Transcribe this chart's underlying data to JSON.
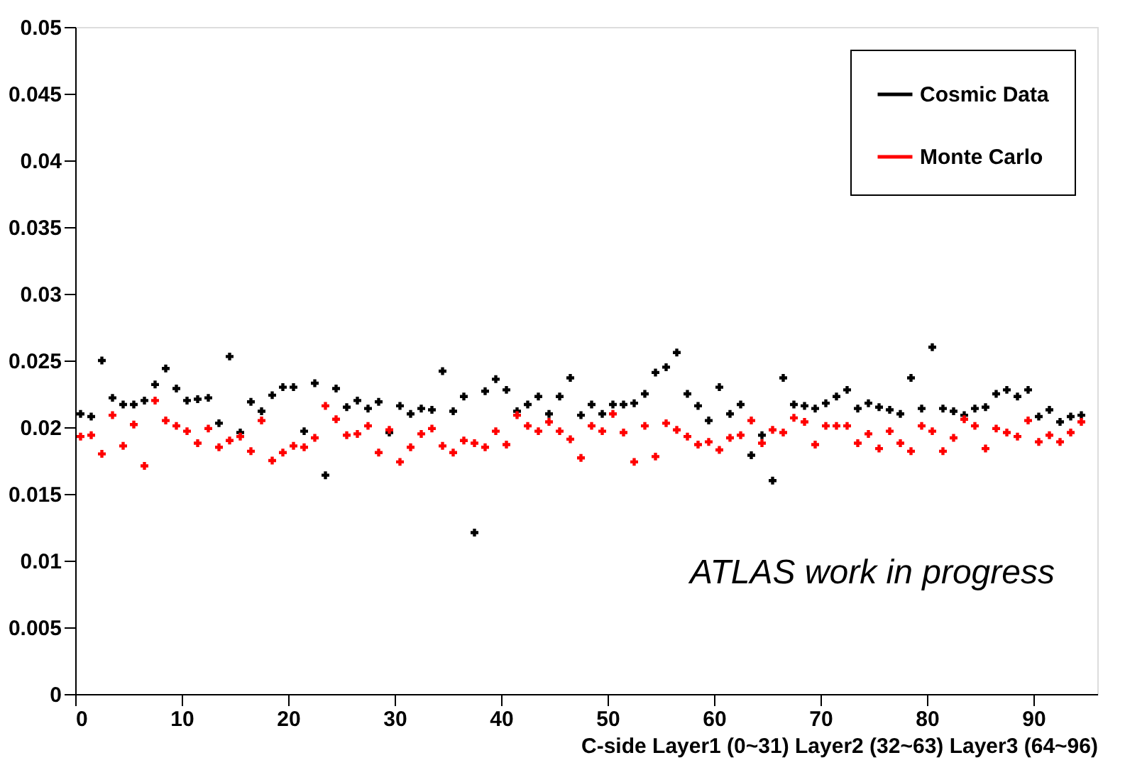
{
  "chart_data": {
    "type": "scatter",
    "xlabel": "C-side Layer1 (0~31) Layer2 (32~63) Layer3 (64~96)",
    "x": [
      0.5,
      1.5,
      2.5,
      3.5,
      4.5,
      5.5,
      6.5,
      7.5,
      8.5,
      9.5,
      10.5,
      11.5,
      12.5,
      13.5,
      14.5,
      15.5,
      16.5,
      17.5,
      18.5,
      19.5,
      20.5,
      21.5,
      22.5,
      23.5,
      24.5,
      25.5,
      26.5,
      27.5,
      28.5,
      29.5,
      30.5,
      31.5,
      32.5,
      33.5,
      34.5,
      35.5,
      36.5,
      37.5,
      38.5,
      39.5,
      40.5,
      41.5,
      42.5,
      43.5,
      44.5,
      45.5,
      46.5,
      47.5,
      48.5,
      49.5,
      50.5,
      51.5,
      52.5,
      53.5,
      54.5,
      55.5,
      56.5,
      57.5,
      58.5,
      59.5,
      60.5,
      61.5,
      62.5,
      63.5,
      64.5,
      65.5,
      66.5,
      67.5,
      68.5,
      69.5,
      70.5,
      71.5,
      72.5,
      73.5,
      74.5,
      75.5,
      76.5,
      77.5,
      78.5,
      79.5,
      80.5,
      81.5,
      82.5,
      83.5,
      84.5,
      85.5,
      86.5,
      87.5,
      88.5,
      89.5,
      90.5,
      91.5,
      92.5,
      93.5,
      94.5
    ],
    "series": [
      {
        "name": "Cosmic Data",
        "color": "#000000",
        "values": [
          0.021,
          0.0208,
          0.025,
          0.0222,
          0.0217,
          0.0217,
          0.022,
          0.0232,
          0.0244,
          0.0229,
          0.022,
          0.0221,
          0.0222,
          0.0203,
          0.0253,
          0.0196,
          0.0219,
          0.0212,
          0.0224,
          0.023,
          0.023,
          0.0197,
          0.0233,
          0.0164,
          0.0229,
          0.0215,
          0.022,
          0.0214,
          0.0219,
          0.0196,
          0.0216,
          0.021,
          0.0214,
          0.0213,
          0.0242,
          0.0212,
          0.0223,
          0.0121,
          0.0227,
          0.0236,
          0.0228,
          0.0212,
          0.0217,
          0.0223,
          0.021,
          0.0223,
          0.0237,
          0.0209,
          0.0217,
          0.021,
          0.0217,
          0.0217,
          0.0218,
          0.0225,
          0.0241,
          0.0245,
          0.0256,
          0.0225,
          0.0216,
          0.0205,
          0.023,
          0.021,
          0.0217,
          0.0179,
          0.0194,
          0.016,
          0.0237,
          0.0217,
          0.0216,
          0.0214,
          0.0218,
          0.0223,
          0.0228,
          0.0214,
          0.0218,
          0.0215,
          0.0213,
          0.021,
          0.0237,
          0.0214,
          0.026,
          0.0214,
          0.0212,
          0.0209,
          0.0214,
          0.0215,
          0.0225,
          0.0228,
          0.0223,
          0.0228,
          0.0208,
          0.0213,
          0.0204,
          0.0208,
          0.0209
        ]
      },
      {
        "name": "Monte Carlo",
        "color": "#ff0000",
        "values": [
          0.0193,
          0.0194,
          0.018,
          0.0209,
          0.0186,
          0.0202,
          0.0171,
          0.022,
          0.0205,
          0.0201,
          0.0197,
          0.0188,
          0.0199,
          0.0185,
          0.019,
          0.0193,
          0.0182,
          0.0205,
          0.0175,
          0.0181,
          0.0186,
          0.0185,
          0.0192,
          0.0216,
          0.0206,
          0.0194,
          0.0195,
          0.0201,
          0.0181,
          0.0198,
          0.0174,
          0.0185,
          0.0195,
          0.0199,
          0.0186,
          0.0181,
          0.019,
          0.0188,
          0.0185,
          0.0197,
          0.0187,
          0.0209,
          0.0201,
          0.0197,
          0.0204,
          0.0197,
          0.0191,
          0.0177,
          0.0201,
          0.0197,
          0.021,
          0.0196,
          0.0174,
          0.0201,
          0.0178,
          0.0203,
          0.0198,
          0.0193,
          0.0187,
          0.0189,
          0.0183,
          0.0192,
          0.0194,
          0.0205,
          0.0188,
          0.0198,
          0.0196,
          0.0207,
          0.0204,
          0.0187,
          0.0201,
          0.0201,
          0.0201,
          0.0188,
          0.0195,
          0.0184,
          0.0197,
          0.0188,
          0.0182,
          0.0201,
          0.0197,
          0.0182,
          0.0192,
          0.0206,
          0.0201,
          0.0184,
          0.0199,
          0.0196,
          0.0193,
          0.0205,
          0.0189,
          0.0194,
          0.0189,
          0.0196,
          0.0204
        ]
      }
    ],
    "xlim": [
      0,
      96
    ],
    "xticks": [
      0,
      10,
      20,
      30,
      40,
      50,
      60,
      70,
      80,
      90
    ],
    "ylim": [
      0,
      0.05
    ],
    "yticks": [
      0,
      0.005,
      0.01,
      0.015,
      0.02,
      0.025,
      0.03,
      0.035,
      0.04,
      0.045,
      0.05
    ],
    "annotations": [
      "ATLAS work in progress"
    ],
    "marker": "cross",
    "legend": "top right",
    "grid": false
  }
}
